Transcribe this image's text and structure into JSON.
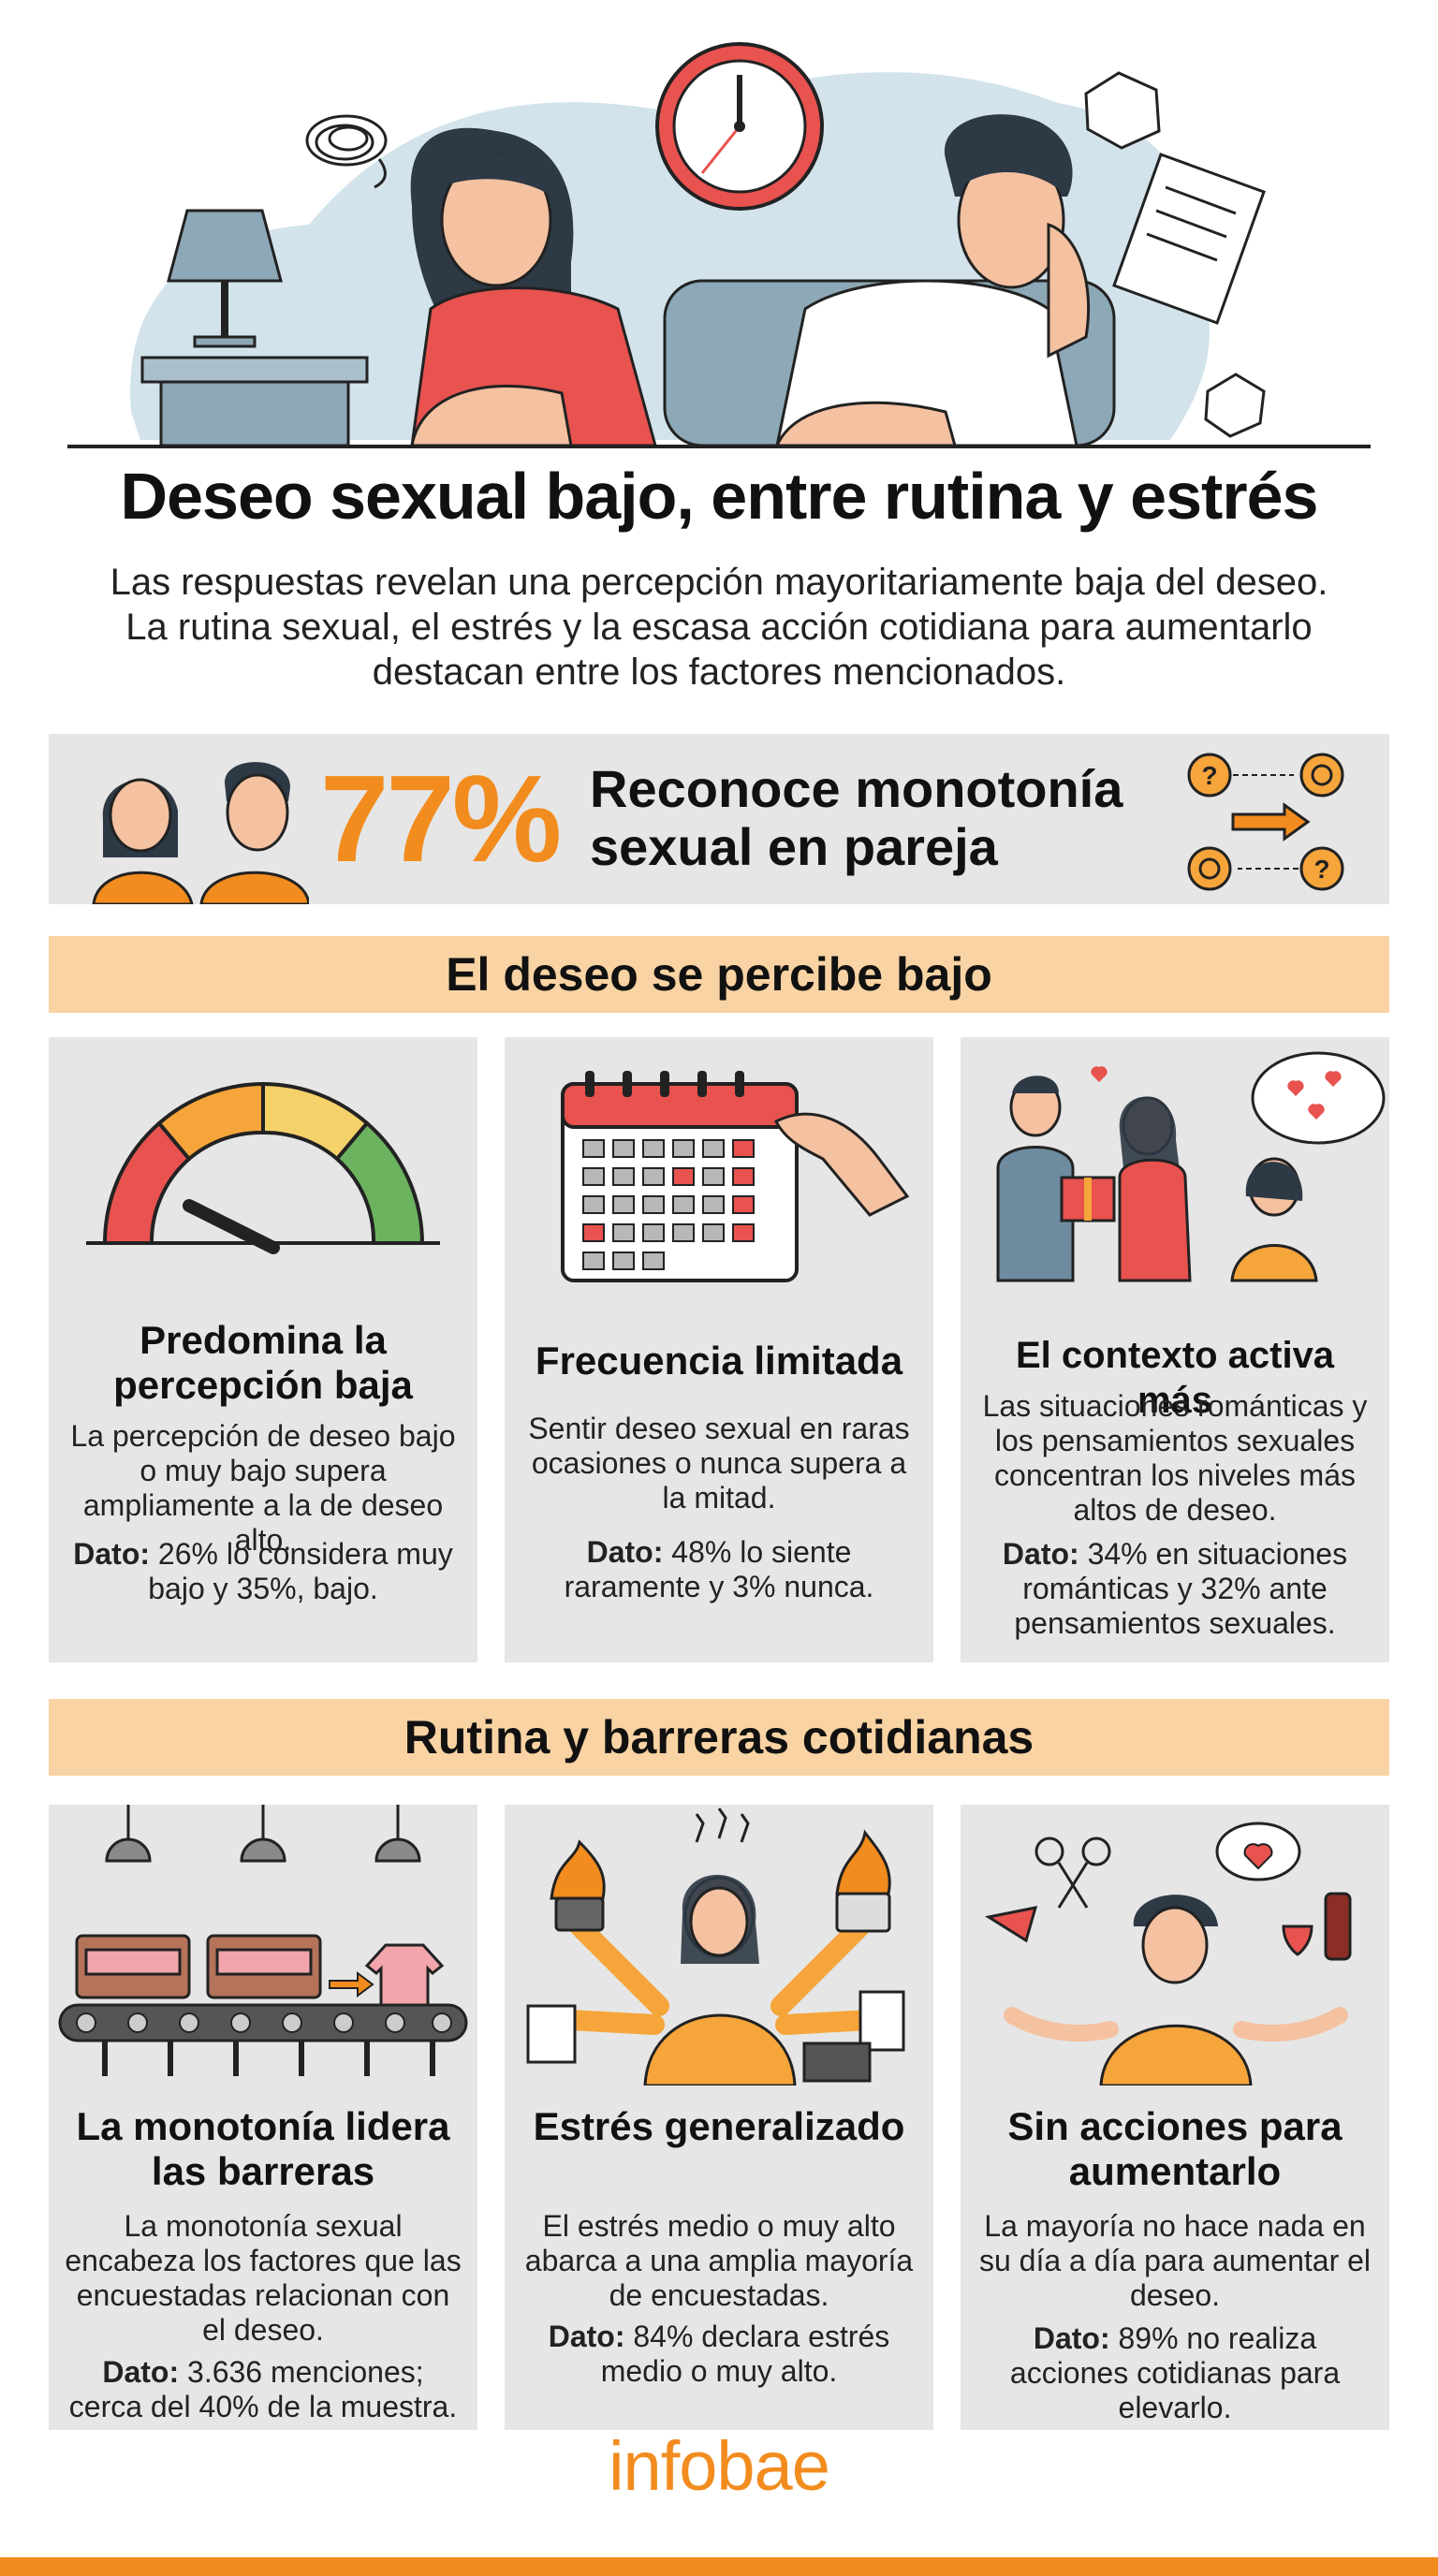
{
  "header": {
    "title": "Deseo sexual bajo, entre rutina y estrés",
    "subtitle": "Las respuestas revelan una percepción mayoritariamente baja del deseo. La rutina sexual, el estrés y la escasa acción cotidiana para aumentarlo destacan entre los factores mencionados."
  },
  "highlight": {
    "value": "77%",
    "label": "Reconoce monotonía sexual en pareja",
    "icons": [
      "couple-icon",
      "cycle-arrows-icon"
    ]
  },
  "sections": [
    {
      "heading": "El deseo se percibe bajo",
      "cards": [
        {
          "icon": "gauge-icon",
          "title": "Predomina la percepción baja",
          "body": "La percepción de deseo bajo o muy bajo supera ampliamente a la de deseo alto.",
          "note_label": "Dato:",
          "note_text": "26% lo considera muy bajo y 35%, bajo."
        },
        {
          "icon": "calendar-icon",
          "title": "Frecuencia limitada",
          "body": "Sentir deseo sexual en raras ocasiones o nunca supera a la mitad.",
          "note_label": "Dato:",
          "note_text": "48% lo siente raramente y 3% nunca."
        },
        {
          "icon": "romantic-gift-icon",
          "title": "El contexto activa más",
          "body": "Las situaciones románticas y los pensamientos sexuales concentran los niveles más altos de deseo.",
          "note_label": "Dato:",
          "note_text": "34% en situaciones románticas y 32% ante pensamientos sexuales."
        }
      ]
    },
    {
      "heading": "Rutina y barreras cotidianas",
      "cards": [
        {
          "icon": "conveyor-beds-icon",
          "title": "La monotonía lidera las barreras",
          "body": "La monotonía sexual encabeza los factores que las encuestadas relacionan con el deseo.",
          "note_label": "Dato:",
          "note_text": "3.636 menciones; cerca del 40% de la muestra."
        },
        {
          "icon": "stressed-woman-icon",
          "title": "Estrés generalizado",
          "body": "El estrés medio o muy alto abarca a una amplia mayoría de encuestadas.",
          "note_label": "Dato:",
          "note_text": "84% declara estrés medio o muy alto."
        },
        {
          "icon": "shrugging-man-icon",
          "title": "Sin acciones para aumentarlo",
          "body": "La mayoría no hace nada en su día a día para aumentar el deseo.",
          "note_label": "Dato:",
          "note_text": "89% no realiza acciones cotidianas para elevarlo."
        }
      ]
    }
  ],
  "footer": {
    "brand": "infobae"
  },
  "colors": {
    "accent": "#f28c1e",
    "banner": "#f9d3a3",
    "card": "#e6e6e6",
    "red": "#e8524f"
  }
}
